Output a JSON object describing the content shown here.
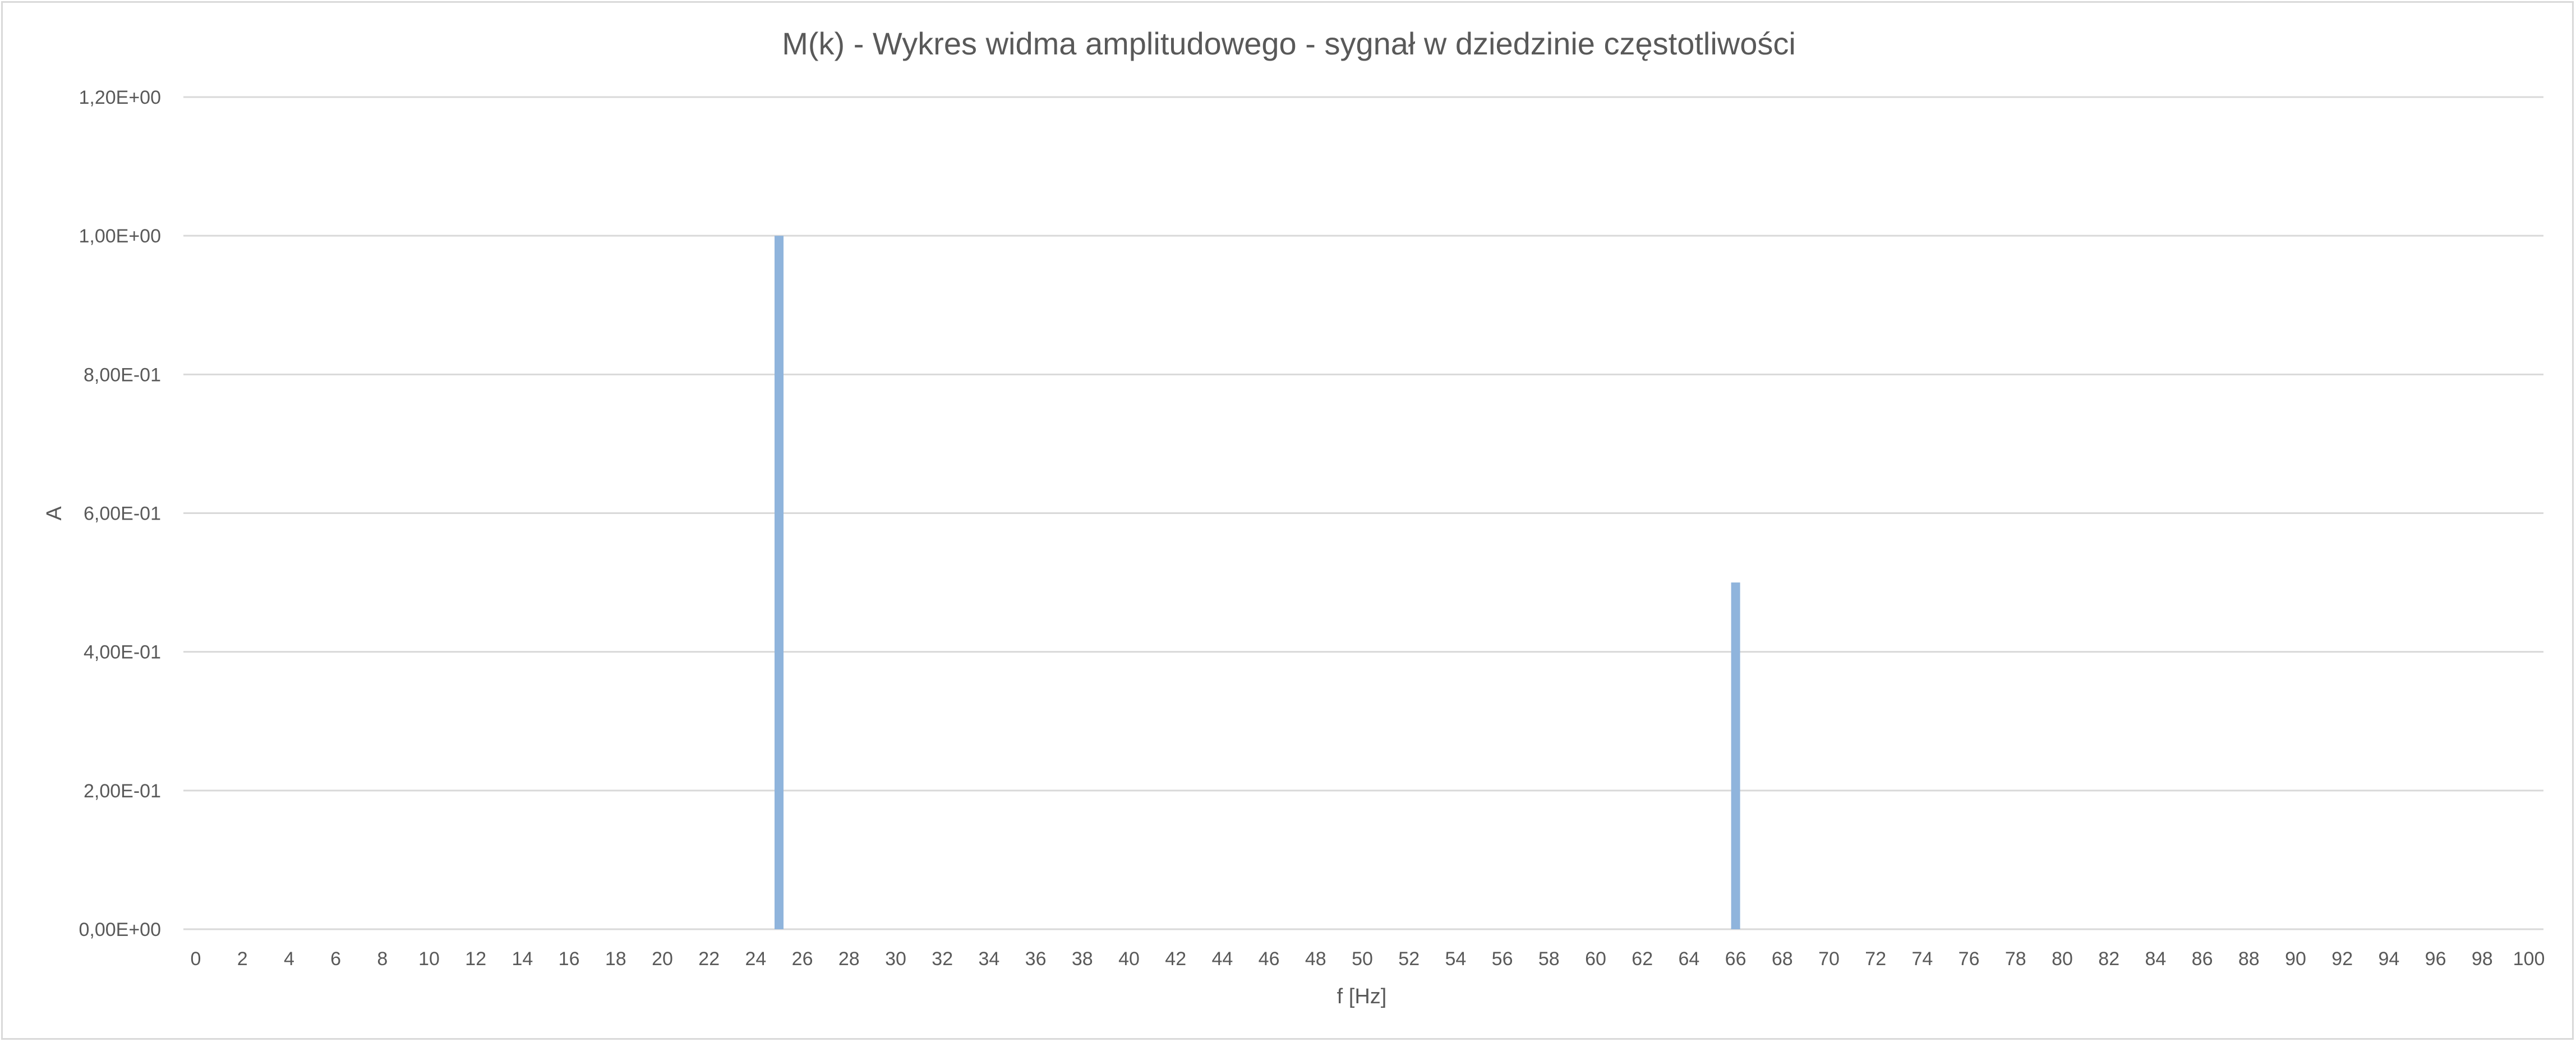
{
  "chart_data": {
    "type": "bar",
    "title": "M(k) - Wykres widma amplitudowego - sygnał w dziedzinie częstotliwości",
    "xlabel": "f [Hz]",
    "ylabel": "A",
    "xlim": [
      0,
      100
    ],
    "ylim": [
      0,
      1.2
    ],
    "x_tick_step": 2,
    "y_ticks": [
      0,
      0.2,
      0.4,
      0.6,
      0.8,
      1.0,
      1.2
    ],
    "y_tick_labels": [
      "0,00E+00",
      "2,00E-01",
      "4,00E-01",
      "6,00E-01",
      "8,00E-01",
      "1,00E+00",
      "1,20E+00"
    ],
    "x_tick_labels": [
      "0",
      "2",
      "4",
      "6",
      "8",
      "10",
      "12",
      "14",
      "16",
      "18",
      "20",
      "22",
      "24",
      "26",
      "28",
      "30",
      "32",
      "34",
      "36",
      "38",
      "40",
      "42",
      "44",
      "46",
      "48",
      "50",
      "52",
      "54",
      "56",
      "58",
      "60",
      "62",
      "64",
      "66",
      "68",
      "70",
      "72",
      "74",
      "76",
      "78",
      "80",
      "82",
      "84",
      "86",
      "88",
      "90",
      "92",
      "94",
      "96",
      "98",
      "100"
    ],
    "series": [
      {
        "x": [
          25,
          66
        ],
        "values": [
          1.0,
          0.5
        ]
      }
    ],
    "grid": true,
    "legend": "none",
    "colors": {
      "bar": "#8fb4dc",
      "grid": "#d9d9d9",
      "text": "#595959",
      "border": "#d9d9d9"
    }
  }
}
